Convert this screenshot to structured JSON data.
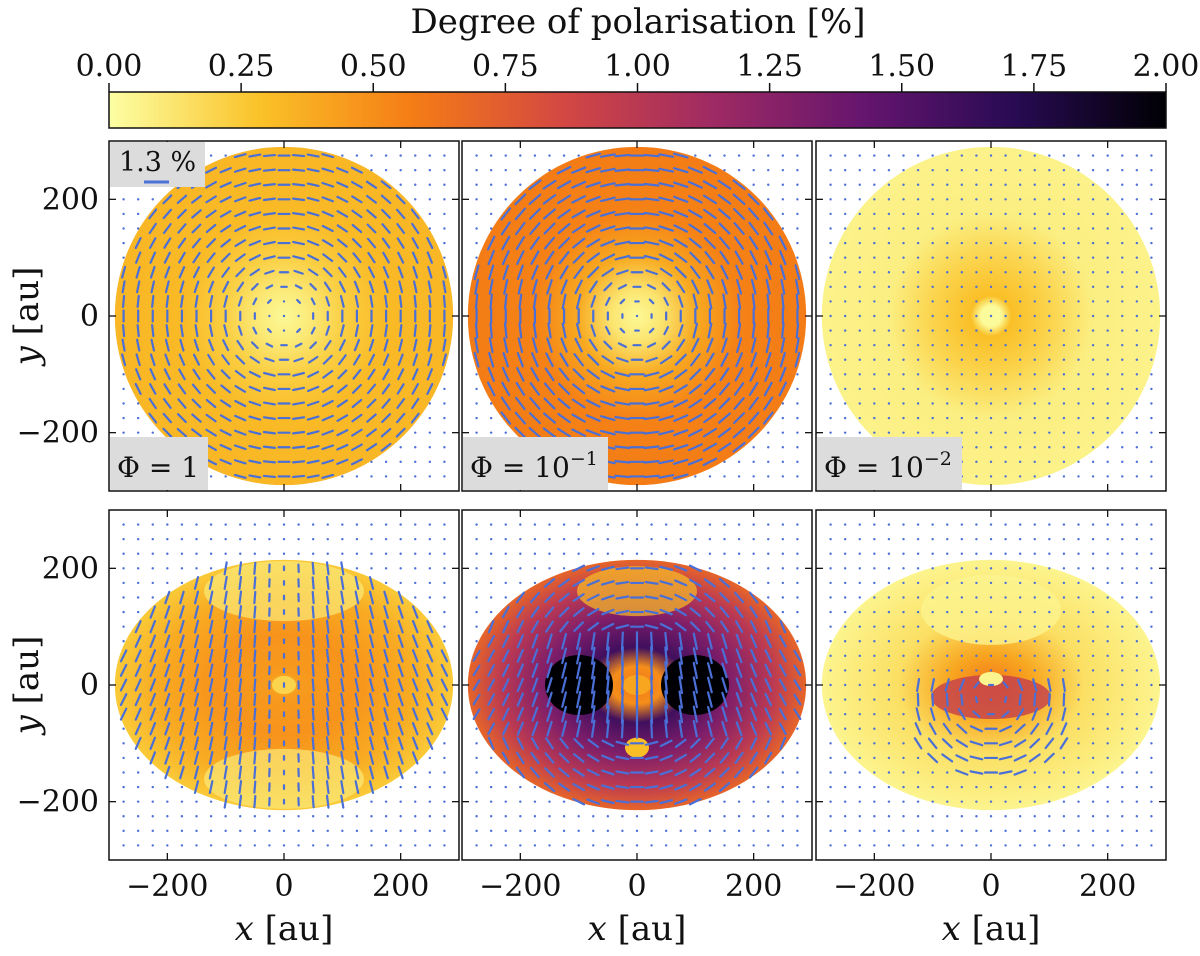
{
  "chart_data": {
    "type": "heatmap",
    "colorbar": {
      "label": "Degree of polarisation [%]",
      "range": [
        0,
        2
      ],
      "ticks": [
        0,
        0.25,
        0.5,
        0.75,
        1,
        1.25,
        1.5,
        1.75,
        2
      ],
      "tick_labels": [
        "0.00",
        "0.25",
        "0.50",
        "0.75",
        "1.00",
        "1.25",
        "1.50",
        "1.75",
        "2.00"
      ],
      "colormap": "inferno_r",
      "colors": [
        "#fcffa4",
        "#fac228",
        "#f57d15",
        "#d44842",
        "#9f2a63",
        "#65156e",
        "#280b53",
        "#000004"
      ]
    },
    "xlabel_var": "x",
    "xlabel_unit": "[au]",
    "ylabel_var": "y",
    "ylabel_unit": "[au]",
    "xlim": [
      -300,
      300
    ],
    "ylim": [
      -300,
      300
    ],
    "xticks": [
      -200,
      0,
      200
    ],
    "xtick_labels": [
      "−200",
      "0",
      "200"
    ],
    "yticks": [
      -200,
      0,
      200
    ],
    "ytick_labels": [
      "−200",
      "0",
      "200"
    ],
    "vector_scale_label": "1.3 %",
    "vector_color": "#4a6fd6",
    "panels": [
      {
        "row": 0,
        "col": 0,
        "phi_base": "Φ = 1",
        "phi_exp": "",
        "shape": "face-on",
        "radius_au": 290,
        "pattern": "azimuthal",
        "center_value": 0.1,
        "disk_value": 0.32
      },
      {
        "row": 0,
        "col": 1,
        "phi_base": "Φ = 10",
        "phi_exp": "−1",
        "shape": "face-on",
        "radius_au": 290,
        "pattern": "azimuthal",
        "center_value": 0.12,
        "disk_value": 0.55
      },
      {
        "row": 0,
        "col": 2,
        "phi_base": "Φ = 10",
        "phi_exp": "−2",
        "shape": "face-on",
        "radius_au": 290,
        "pattern": "dots",
        "center_value": 0.02,
        "disk_value": 0.08
      },
      {
        "row": 1,
        "col": 0,
        "phi_base": "",
        "phi_exp": "",
        "shape": "inclined",
        "radius_au": 290,
        "axis_ratio": 0.74,
        "pattern": "vertical",
        "center_value": 0.3,
        "disk_value": 0.45
      },
      {
        "row": 1,
        "col": 1,
        "phi_base": "",
        "phi_exp": "",
        "shape": "inclined",
        "radius_au": 290,
        "axis_ratio": 0.74,
        "pattern": "vertical-strong",
        "center_value": 0.6,
        "disk_value": 1.3
      },
      {
        "row": 1,
        "col": 2,
        "phi_base": "",
        "phi_exp": "",
        "shape": "inclined",
        "radius_au": 290,
        "axis_ratio": 0.74,
        "pattern": "offset",
        "center_value": 0.4,
        "disk_value": 0.12
      }
    ]
  }
}
